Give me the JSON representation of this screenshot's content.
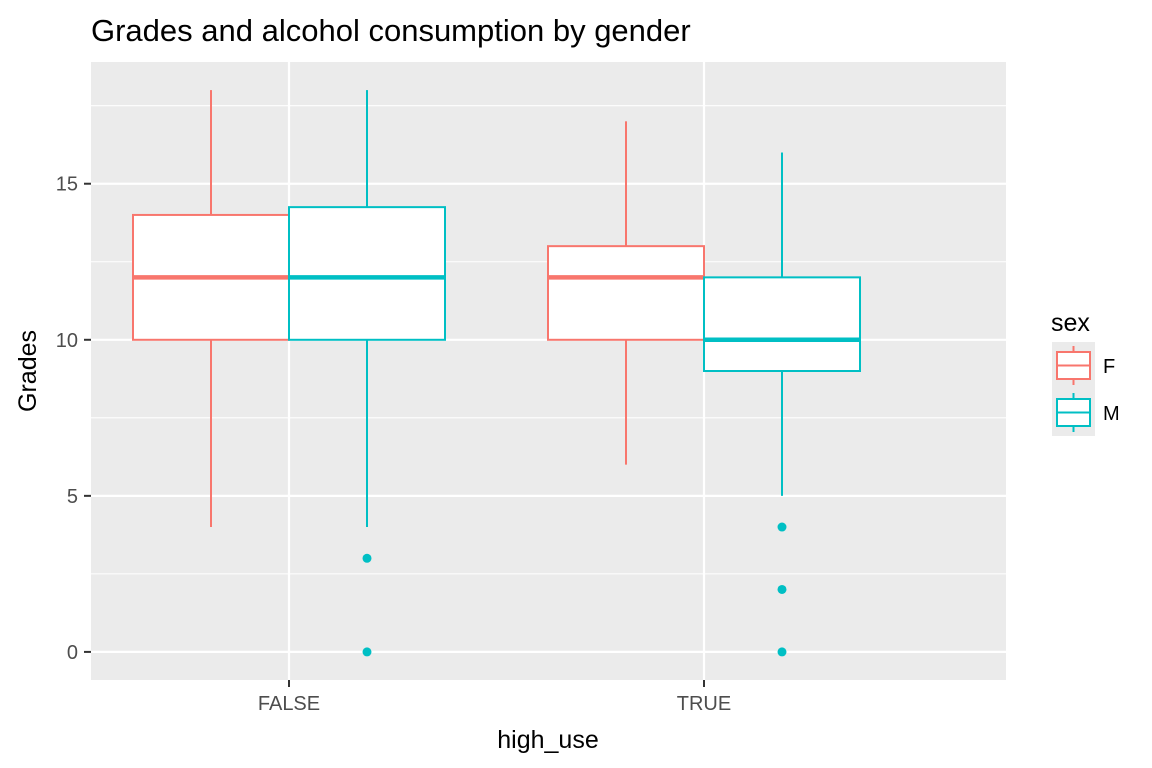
{
  "chart_data": {
    "type": "boxplot",
    "title": "Grades and alcohol consumption by gender",
    "xlabel": "high_use",
    "ylabel": "Grades",
    "categories": [
      "FALSE",
      "TRUE"
    ],
    "ylim": [
      -0.9,
      18.9
    ],
    "yticks": [
      0,
      5,
      10,
      15
    ],
    "grid": true,
    "legend": {
      "title": "sex",
      "placement": "right"
    },
    "series": [
      {
        "name": "F",
        "color": "#f8766d",
        "boxes": [
          {
            "category": "FALSE",
            "min": 4,
            "q1": 10,
            "median": 12,
            "q3": 14,
            "max": 18,
            "outliers": []
          },
          {
            "category": "TRUE",
            "min": 6,
            "q1": 10,
            "median": 12,
            "q3": 13,
            "max": 17,
            "outliers": []
          }
        ]
      },
      {
        "name": "M",
        "color": "#00bfc4",
        "boxes": [
          {
            "category": "FALSE",
            "min": 4,
            "q1": 10,
            "median": 12,
            "q3": 14.25,
            "max": 18,
            "outliers": [
              3,
              0
            ]
          },
          {
            "category": "TRUE",
            "min": 5,
            "q1": 9,
            "median": 10,
            "q3": 12,
            "max": 16,
            "outliers": [
              4,
              2,
              0
            ]
          }
        ]
      }
    ]
  }
}
